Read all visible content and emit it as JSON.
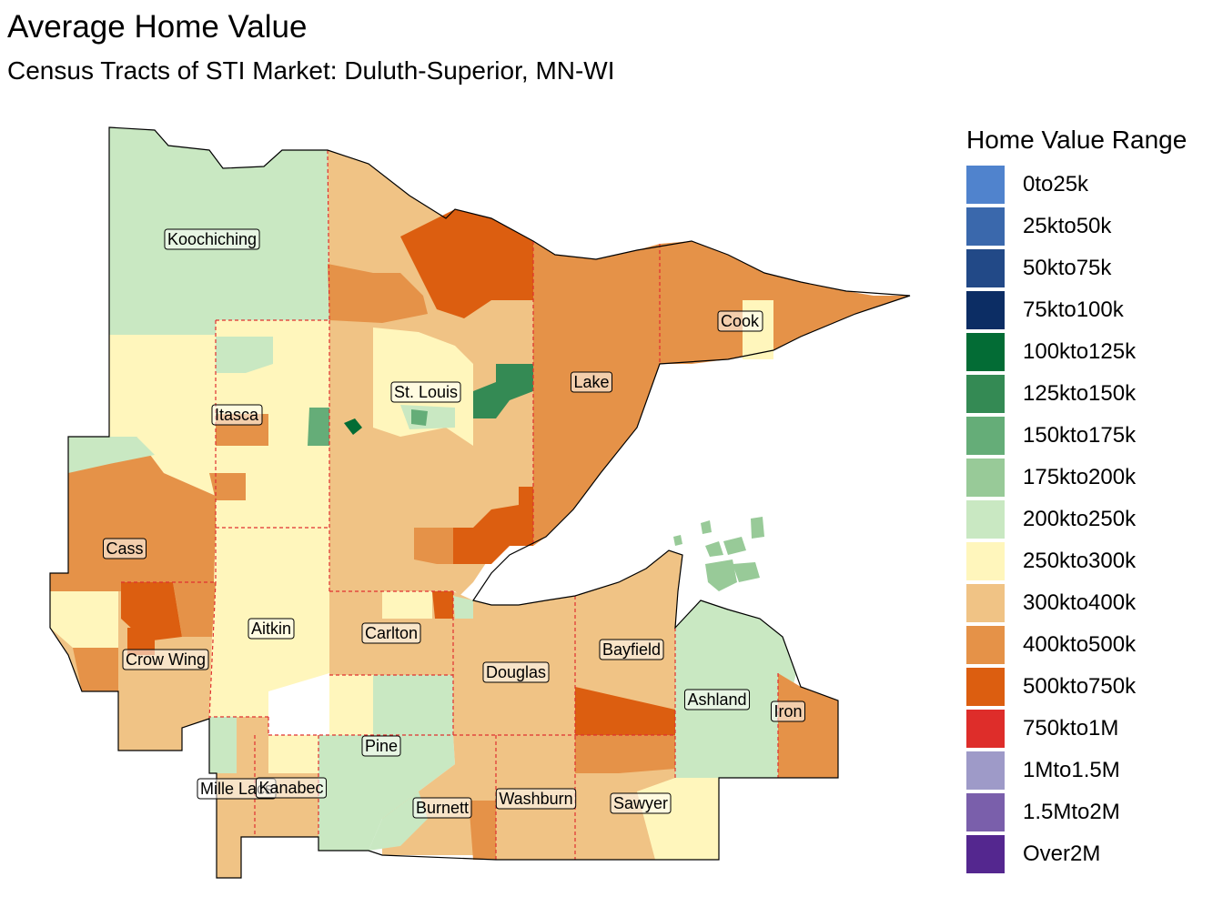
{
  "title": "Average Home Value",
  "subtitle": "Census Tracts of STI Market: Duluth-Superior, MN-WI",
  "legend": {
    "title": "Home Value Range",
    "items": [
      {
        "label": "0to25k",
        "color": "#5083cd"
      },
      {
        "label": "25kto50k",
        "color": "#3a68ac"
      },
      {
        "label": "50kto75k",
        "color": "#224987"
      },
      {
        "label": "75kto100k",
        "color": "#0c2d64"
      },
      {
        "label": "100kto125k",
        "color": "#036c35"
      },
      {
        "label": "125kto150k",
        "color": "#348a54"
      },
      {
        "label": "150kto175k",
        "color": "#65ad78"
      },
      {
        "label": "175kto200k",
        "color": "#98ca98"
      },
      {
        "label": "200kto250k",
        "color": "#c9e8c2"
      },
      {
        "label": "250kto300k",
        "color": "#fff6bc"
      },
      {
        "label": "300kto400k",
        "color": "#f0c385"
      },
      {
        "label": "400kto500k",
        "color": "#e59248"
      },
      {
        "label": "500kto750k",
        "color": "#dc5e10"
      },
      {
        "label": "750kto1M",
        "color": "#de2d2a"
      },
      {
        "label": "1Mto1.5M",
        "color": "#9e9ac8"
      },
      {
        "label": "1.5Mto2M",
        "color": "#7a5fab"
      },
      {
        "label": "Over2M",
        "color": "#54278f"
      }
    ]
  },
  "counties": [
    {
      "name": "Koochiching",
      "fill": "200kto250k"
    },
    {
      "name": "Itasca",
      "fill": "250kto300k"
    },
    {
      "name": "St. Louis",
      "fill": "300kto400k"
    },
    {
      "name": "Lake",
      "fill": "400kto500k"
    },
    {
      "name": "Cook",
      "fill": "400kto500k"
    },
    {
      "name": "Cass",
      "fill": "400kto500k"
    },
    {
      "name": "Crow Wing",
      "fill": "300kto400k"
    },
    {
      "name": "Aitkin",
      "fill": "250kto300k"
    },
    {
      "name": "Carlton",
      "fill": "300kto400k"
    },
    {
      "name": "Mille Lacs",
      "fill": "300kto400k"
    },
    {
      "name": "Kanabec",
      "fill": "300kto400k"
    },
    {
      "name": "Pine",
      "fill": "300kto400k"
    },
    {
      "name": "Douglas",
      "fill": "300kto400k"
    },
    {
      "name": "Bayfield",
      "fill": "300kto400k"
    },
    {
      "name": "Ashland",
      "fill": "200kto250k"
    },
    {
      "name": "Iron",
      "fill": "400kto500k"
    },
    {
      "name": "Burnett",
      "fill": "300kto400k"
    },
    {
      "name": "Washburn",
      "fill": "300kto400k"
    },
    {
      "name": "Sawyer",
      "fill": "300kto400k"
    }
  ]
}
